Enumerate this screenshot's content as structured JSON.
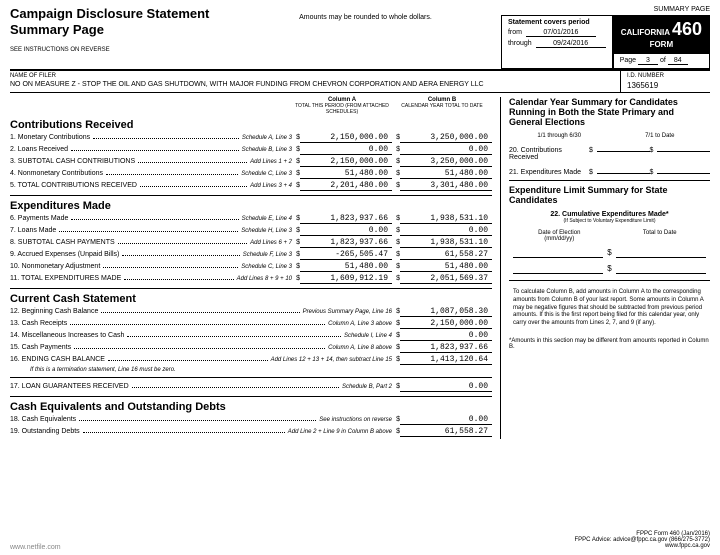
{
  "header": {
    "title1": "Campaign Disclosure Statement",
    "title2": "Summary Page",
    "rounding": "Amounts may be rounded to whole dollars.",
    "summary_page": "SUMMARY PAGE",
    "period_lbl": "Statement covers period",
    "from_lbl": "from",
    "from": "07/01/2016",
    "through_lbl": "through",
    "through": "09/24/2016",
    "cali1": "CALIFORNIA",
    "cali2": "FORM",
    "cali3": "460",
    "page_lbl": "Page",
    "page": "3",
    "of_lbl": "of",
    "of": "84",
    "instr": "SEE INSTRUCTIONS ON REVERSE",
    "filer_lbl": "NAME OF FILER",
    "filer": "NO ON MEASURE Z - STOP THE OIL AND GAS SHUTDOWN, WITH MAJOR FUNDING FROM CHEVRON CORPORATION AND AERA ENERGY LLC",
    "id_lbl": "I.D. NUMBER",
    "id": "1365619"
  },
  "colA": {
    "title": "Column A",
    "sub": "TOTAL THIS PERIOD (FROM ATTACHED SCHEDULES)"
  },
  "colB": {
    "title": "Column B",
    "sub": "CALENDAR YEAR TOTAL TO DATE"
  },
  "sections": {
    "contrib": {
      "title": "Contributions Received",
      "lines": [
        {
          "n": "1.",
          "t": "Monetary Contributions",
          "s": "Schedule A, Line 3",
          "a": "2,150,000.00",
          "b": "3,250,000.00"
        },
        {
          "n": "2.",
          "t": "Loans Received",
          "s": "Schedule B, Line 3",
          "a": "0.00",
          "b": "0.00"
        },
        {
          "n": "3.",
          "t": "SUBTOTAL CASH CONTRIBUTIONS",
          "s": "Add Lines 1 + 2",
          "a": "2,150,000.00",
          "b": "3,250,000.00"
        },
        {
          "n": "4.",
          "t": "Nonmonetary Contributions",
          "s": "Schedule C, Line 3",
          "a": "51,480.00",
          "b": "51,480.00"
        },
        {
          "n": "5.",
          "t": "TOTAL CONTRIBUTIONS RECEIVED",
          "s": "Add Lines 3 + 4",
          "a": "2,201,480.00",
          "b": "3,301,480.00"
        }
      ]
    },
    "expend": {
      "title": "Expenditures Made",
      "lines": [
        {
          "n": "6.",
          "t": "Payments Made",
          "s": "Schedule E, Line 4",
          "a": "1,823,937.66",
          "b": "1,938,531.10"
        },
        {
          "n": "7.",
          "t": "Loans Made",
          "s": "Schedule H, Line 3",
          "a": "0.00",
          "b": "0.00"
        },
        {
          "n": "8.",
          "t": "SUBTOTAL CASH PAYMENTS",
          "s": "Add Lines 6 + 7",
          "a": "1,823,937.66",
          "b": "1,938,531.10"
        },
        {
          "n": "9.",
          "t": "Accrued Expenses (Unpaid Bills)",
          "s": "Schedule F, Line 3",
          "a": "-265,505.47",
          "b": "61,558.27"
        },
        {
          "n": "10.",
          "t": "Nonmonetary Adjustment",
          "s": "Schedule C, Line 3",
          "a": "51,480.00",
          "b": "51,480.00"
        },
        {
          "n": "11.",
          "t": "TOTAL EXPENDITURES MADE",
          "s": "Add Lines 8 + 9 + 10",
          "a": "1,609,912.19",
          "b": "2,051,569.37"
        }
      ]
    },
    "cash": {
      "title": "Current Cash Statement",
      "lines": [
        {
          "n": "12.",
          "t": "Beginning Cash Balance",
          "s": "Previous Summary Page, Line 16",
          "a": "1,087,058.30"
        },
        {
          "n": "13.",
          "t": "Cash Receipts",
          "s": "Column A, Line 3 above",
          "a": "2,150,000.00"
        },
        {
          "n": "14.",
          "t": "Miscellaneous Increases to Cash",
          "s": "Schedule I, Line 4",
          "a": "0.00"
        },
        {
          "n": "15.",
          "t": "Cash Payments",
          "s": "Column A, Line 8 above",
          "a": "1,823,937.66"
        },
        {
          "n": "16.",
          "t": "ENDING CASH BALANCE",
          "s": "Add Lines 12 + 13 + 14, then subtract Line 15",
          "a": "1,413,120.64"
        }
      ],
      "note": "If this is a termination statement, Line 16 must be zero."
    },
    "loan": {
      "lines": [
        {
          "n": "17.",
          "t": "LOAN GUARANTEES RECEIVED",
          "s": "Schedule B, Part 2",
          "a": "0.00"
        }
      ]
    },
    "debts": {
      "title": "Cash Equivalents and Outstanding Debts",
      "lines": [
        {
          "n": "18.",
          "t": "Cash Equivalents",
          "s": "See instructions on reverse",
          "a": "0.00"
        },
        {
          "n": "19.",
          "t": "Outstanding Debts",
          "s": "Add Line 2 + Line 9 in Column B above",
          "a": "61,558.27"
        }
      ]
    }
  },
  "right": {
    "cys": {
      "title": "Calendar Year Summary for Candidates Running in Both the State Primary and General Elections",
      "h1": "1/1 through 6/30",
      "h2": "7/1 to Date",
      "l20": "20. Contributions Received",
      "l21": "21. Expenditures Made"
    },
    "els": {
      "title": "Expenditure Limit Summary for State Candidates",
      "l22": "22. Cumulative Expenditures Made*",
      "l22sub": "(If Subject to Voluntary Expenditure Limit)",
      "c1": "Date of Election",
      "c1sub": "(mm/dd/yy)",
      "c2": "Total to Date"
    },
    "calc": "To calculate Column B, add amounts in Column A to the corresponding amounts from Column B of your last report. Some amounts in Column A may be negative figures that should be subtracted from previous period amounts. If this is the first report being filed for this calendar year, only carry over the amounts from Lines 2, 7, and 9 (if any).",
    "note": "*Amounts in this section may be different from amounts reported in Column B."
  },
  "footer": {
    "l1": "FPPC Form 460 (Jan/2016)",
    "l2": "FPPC Advice: advice@fppc.ca.gov (866/275-3772)",
    "l3": "www.fppc.ca.gov",
    "netfile": "www.netfile.com"
  }
}
